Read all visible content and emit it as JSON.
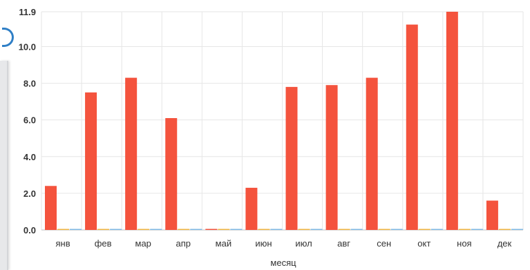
{
  "chart_data": {
    "type": "bar",
    "title": "",
    "xlabel": "месяц",
    "ylabel": "",
    "ylim": [
      0,
      11.9
    ],
    "yticks": [
      "0.0",
      "2.0",
      "4.0",
      "6.0",
      "8.0",
      "10.0",
      "11.9"
    ],
    "categories": [
      "янв",
      "фев",
      "мар",
      "апр",
      "май",
      "июн",
      "июл",
      "авг",
      "сен",
      "окт",
      "ноя",
      "дек"
    ],
    "series": [
      {
        "color": "#f4533d",
        "values": [
          2.4,
          7.5,
          8.3,
          6.1,
          0.05,
          2.3,
          7.8,
          7.9,
          8.3,
          11.2,
          11.9,
          1.6
        ]
      },
      {
        "color": "#f0b642",
        "values": [
          0,
          0,
          0,
          0,
          0,
          0,
          0,
          0,
          0,
          0,
          0,
          0
        ]
      },
      {
        "color": "#7fb9e6",
        "values": [
          0,
          0,
          0,
          0,
          0,
          0,
          0,
          0,
          0,
          0,
          0,
          0
        ]
      }
    ],
    "grid": true,
    "legend": "none"
  },
  "colors": {
    "grid": "#e6e6e6",
    "axis": "#333333",
    "label": "#333333"
  }
}
